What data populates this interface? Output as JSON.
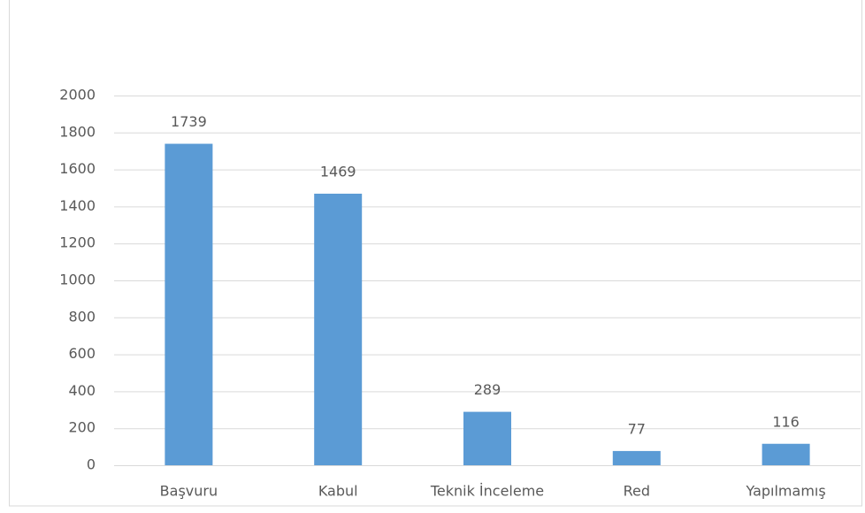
{
  "chart_data": {
    "type": "bar",
    "categories": [
      "Başvuru",
      "Kabul",
      "Teknik İnceleme",
      "Red",
      "Yapılmamış"
    ],
    "values": [
      1739,
      1469,
      289,
      77,
      116
    ],
    "color": "#5b9bd5",
    "ylim": [
      0,
      2000
    ],
    "yticks": [
      0,
      200,
      400,
      600,
      800,
      1000,
      1200,
      1400,
      1600,
      1800,
      2000
    ],
    "grid": true
  }
}
